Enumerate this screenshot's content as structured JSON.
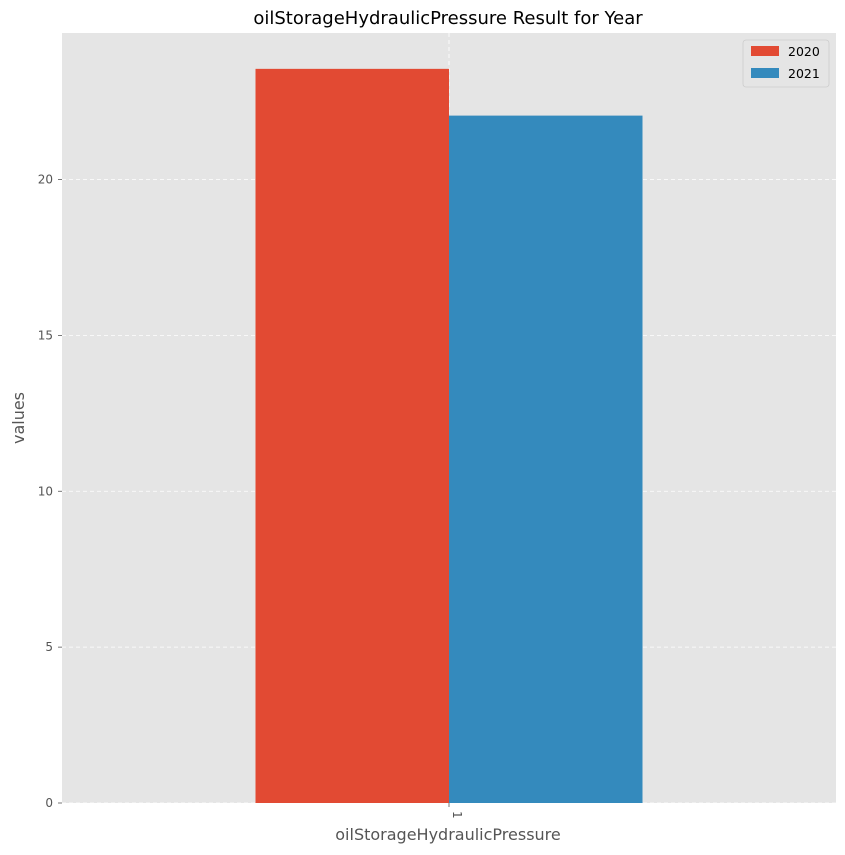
{
  "chart_data": {
    "type": "bar",
    "title": "oilStorageHydraulicPressure Result for Year",
    "xlabel": "oilStorageHydraulicPressure",
    "ylabel": "values",
    "categories": [
      "1"
    ],
    "series": [
      {
        "name": "2020",
        "values": [
          23.55
        ],
        "color": "#E24A33"
      },
      {
        "name": "2021",
        "values": [
          22.05
        ],
        "color": "#348ABD"
      }
    ],
    "ylim": [
      0,
      24.7
    ],
    "yticks": [
      0,
      5,
      10,
      15,
      20
    ],
    "grid": true,
    "legend": "top-right",
    "background": "#E5E5E5"
  }
}
